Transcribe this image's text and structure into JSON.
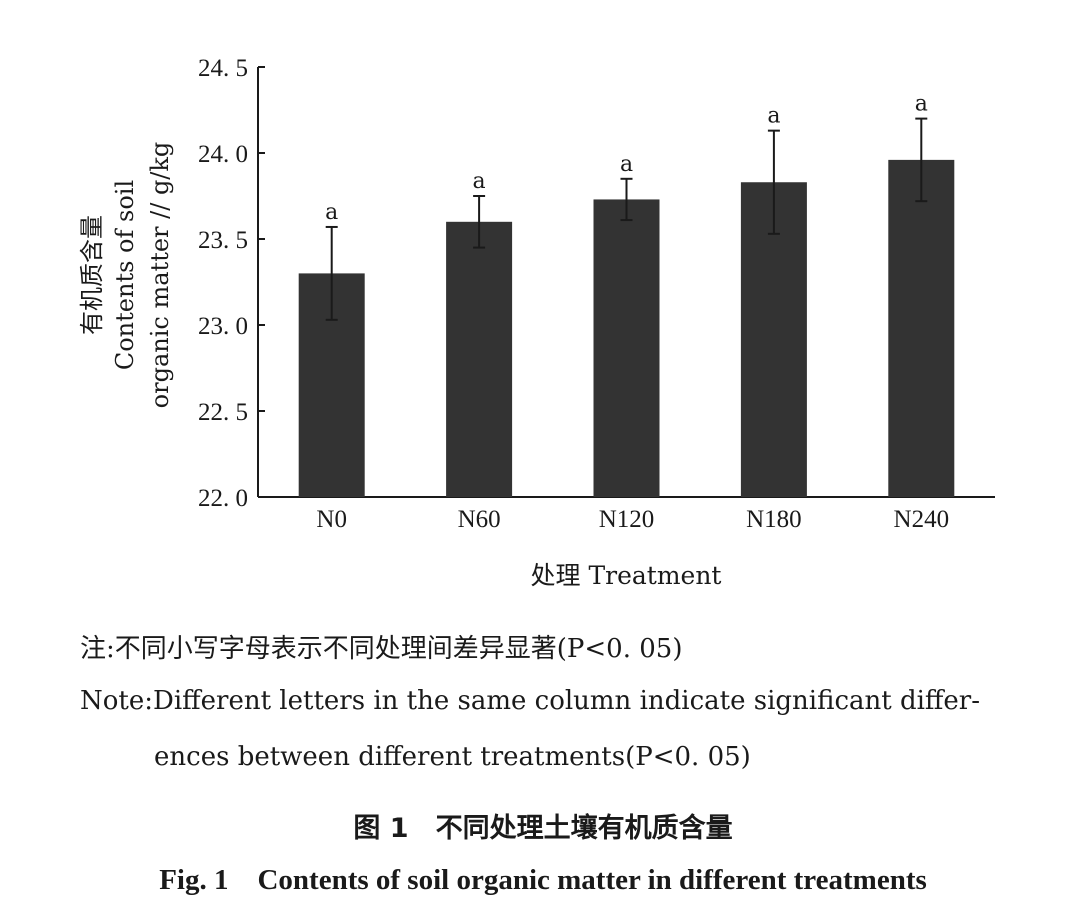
{
  "chart_data": {
    "type": "bar",
    "categories": [
      "N0",
      "N60",
      "N120",
      "N180",
      "N240"
    ],
    "values": [
      23.3,
      23.6,
      23.73,
      23.83,
      23.96
    ],
    "errors": [
      0.27,
      0.15,
      0.12,
      0.3,
      0.24
    ],
    "significance": [
      "a",
      "a",
      "a",
      "a",
      "a"
    ],
    "ylim": [
      22.0,
      24.5
    ],
    "yticks": [
      "22. 0",
      "22. 5",
      "23. 0",
      "23. 5",
      "24. 0",
      "24. 5"
    ],
    "ylabel_cn": "有机质含量",
    "ylabel_en_line1": "Contents of soil",
    "ylabel_en_line2": "organic matter // g/kg",
    "xlabel": "处理 Treatment",
    "bar_color": "#333333",
    "grid": false
  },
  "notes": {
    "cn": "注:不同小写字母表示不同处理间差异显著(P<0. 05)",
    "en_line1": "Note:Different letters in the same column indicate significant differ-",
    "en_line2": "ences between different treatments(P<0. 05)"
  },
  "caption": {
    "cn": "图 1　不同处理土壤有机质含量",
    "en": "Fig. 1　Contents of soil organic matter in different treatments"
  }
}
